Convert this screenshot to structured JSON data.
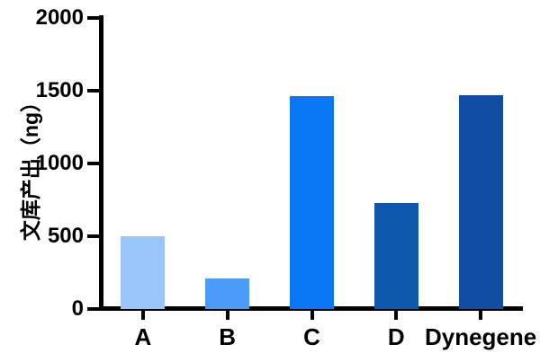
{
  "chart_data": {
    "type": "bar",
    "title": "",
    "categories": [
      "A",
      "B",
      "C",
      "D",
      "Dynegene"
    ],
    "values": [
      500,
      210,
      1460,
      730,
      1470
    ],
    "bar_colors": [
      "#9AC5FA",
      "#4A9BFA",
      "#0B76F3",
      "#0E58AE",
      "#114DA2"
    ],
    "ylabel": "文库产出（ng）",
    "xlabel": "",
    "ylim": [
      0,
      2000
    ],
    "yticks": [
      0,
      500,
      1000,
      1500,
      2000
    ],
    "grid": false,
    "legend_position": "none",
    "axis_color": "#000000",
    "background_color": "#FFFFFF"
  }
}
